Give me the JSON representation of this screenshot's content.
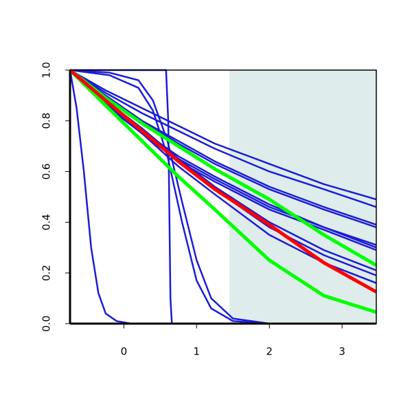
{
  "chart_data": {
    "type": "line",
    "xlim": [
      -0.74,
      3.47
    ],
    "ylim": [
      0,
      1
    ],
    "xticks": [
      0,
      1,
      2,
      3
    ],
    "yticks": [
      {
        "value": 0,
        "label": "0.0"
      },
      {
        "value": 0.2,
        "label": "0.2"
      },
      {
        "value": 0.4,
        "label": "0.4"
      },
      {
        "value": 0.6,
        "label": "0.6"
      },
      {
        "value": 0.8,
        "label": "0.8"
      },
      {
        "value": 1,
        "label": "1.0"
      }
    ],
    "shaded_x": [
      1.45,
      3.47
    ],
    "shade_color": "#dfecec",
    "series": [
      {
        "color": "#1c1cd6",
        "x": [
          -0.74,
          -0.25,
          0.25,
          0.75,
          1.25,
          2,
          2.75,
          3.47
        ],
        "values": [
          1,
          0.92,
          0.85,
          0.78,
          0.71,
          0.63,
          0.55,
          0.49
        ]
      },
      {
        "color": "#1c1cd6",
        "x": [
          -0.74,
          -0.25,
          0.25,
          0.75,
          1.25,
          2,
          2.75,
          3.47
        ],
        "values": [
          1,
          0.91,
          0.83,
          0.76,
          0.69,
          0.6,
          0.53,
          0.46
        ]
      },
      {
        "color": "#1c1cd6",
        "x": [
          -0.74,
          -0.25,
          0.25,
          0.75,
          1.25,
          2,
          2.75,
          3.47
        ],
        "values": [
          1,
          0.9,
          0.8,
          0.72,
          0.64,
          0.54,
          0.46,
          0.39
        ]
      },
      {
        "color": "#1c1cd6",
        "x": [
          -0.74,
          -0.25,
          0.25,
          0.75,
          1.25,
          2,
          2.75,
          3.47
        ],
        "values": [
          1,
          0.89,
          0.8,
          0.71,
          0.63,
          0.53,
          0.45,
          0.38
        ]
      },
      {
        "color": "#1c1cd6",
        "x": [
          -0.74,
          -0.25,
          0.25,
          0.75,
          1.25,
          2,
          2.75,
          3.47
        ],
        "values": [
          1,
          0.87,
          0.76,
          0.66,
          0.58,
          0.47,
          0.38,
          0.31
        ]
      },
      {
        "color": "#1c1cd6",
        "x": [
          -0.74,
          -0.25,
          0.25,
          0.75,
          1.25,
          2,
          2.75,
          3.47
        ],
        "values": [
          1,
          0.87,
          0.75,
          0.65,
          0.57,
          0.46,
          0.38,
          0.3
        ]
      },
      {
        "color": "#1c1cd6",
        "x": [
          -0.74,
          -0.25,
          0.25,
          0.75,
          1.25,
          2,
          2.75,
          3.47
        ],
        "values": [
          1,
          0.86,
          0.75,
          0.64,
          0.56,
          0.45,
          0.37,
          0.29
        ]
      },
      {
        "color": "#1c1cd6",
        "x": [
          -0.74,
          -0.25,
          0.25,
          0.75,
          1.25,
          2,
          2.75,
          3.47
        ],
        "values": [
          1,
          0.88,
          0.77,
          0.65,
          0.54,
          0.4,
          0.29,
          0.21
        ]
      },
      {
        "color": "#1c1cd6",
        "x": [
          -0.74,
          -0.25,
          0.25,
          0.75,
          1.25,
          2,
          2.75,
          3.47
        ],
        "values": [
          1,
          0.87,
          0.76,
          0.64,
          0.53,
          0.38,
          0.27,
          0.19
        ]
      },
      {
        "color": "#1c1cd6",
        "x": [
          -0.74,
          -0.25,
          0.25,
          0.75,
          1.25,
          2,
          2.75,
          3.47
        ],
        "values": [
          1,
          0.87,
          0.75,
          0.62,
          0.51,
          0.35,
          0.24,
          0.16
        ]
      },
      {
        "color": "#1c1cd6",
        "x": [
          -0.74,
          -0.65,
          -0.55,
          -0.45,
          -0.35,
          -0.25,
          -0.1,
          0.1,
          3.47
        ],
        "values": [
          1,
          0.85,
          0.6,
          0.3,
          0.12,
          0.04,
          0.01,
          0,
          0
        ]
      },
      {
        "color": "#1c1cd6",
        "x": [
          -0.74,
          0.58,
          0.61,
          0.64,
          0.66,
          3.47
        ],
        "values": [
          1,
          1,
          0.8,
          0.1,
          0,
          0
        ]
      },
      {
        "color": "#1c1cd6",
        "x": [
          -0.74,
          -0.2,
          0.2,
          0.4,
          0.6,
          0.8,
          1,
          1.2,
          1.5,
          2,
          3.47
        ],
        "values": [
          1,
          0.99,
          0.96,
          0.88,
          0.72,
          0.48,
          0.25,
          0.1,
          0.02,
          0,
          0
        ]
      },
      {
        "color": "#1c1cd6",
        "x": [
          -0.74,
          -0.2,
          0.2,
          0.4,
          0.6,
          0.8,
          1,
          1.2,
          1.5,
          2,
          3.47
        ],
        "values": [
          1,
          0.98,
          0.93,
          0.84,
          0.66,
          0.4,
          0.17,
          0.06,
          0.01,
          0,
          0
        ]
      },
      {
        "color": "#00ff00",
        "x": [
          -0.74,
          -0.25,
          0.25,
          0.75,
          1.25,
          2,
          2.75,
          3.47
        ],
        "values": [
          1,
          0.89,
          0.79,
          0.7,
          0.61,
          0.49,
          0.35,
          0.23
        ]
      },
      {
        "color": "#00ff00",
        "x": [
          -0.74,
          -0.25,
          0.25,
          0.75,
          1.25,
          2,
          2.75,
          3.47
        ],
        "values": [
          1,
          0.86,
          0.72,
          0.58,
          0.45,
          0.25,
          0.11,
          0.045
        ]
      },
      {
        "color": "#ff0000",
        "x": [
          -0.74,
          -0.25,
          0.25,
          0.75,
          1.25,
          2,
          2.75,
          3.47
        ],
        "values": [
          1,
          0.88,
          0.76,
          0.64,
          0.53,
          0.39,
          0.24,
          0.125
        ]
      }
    ]
  }
}
